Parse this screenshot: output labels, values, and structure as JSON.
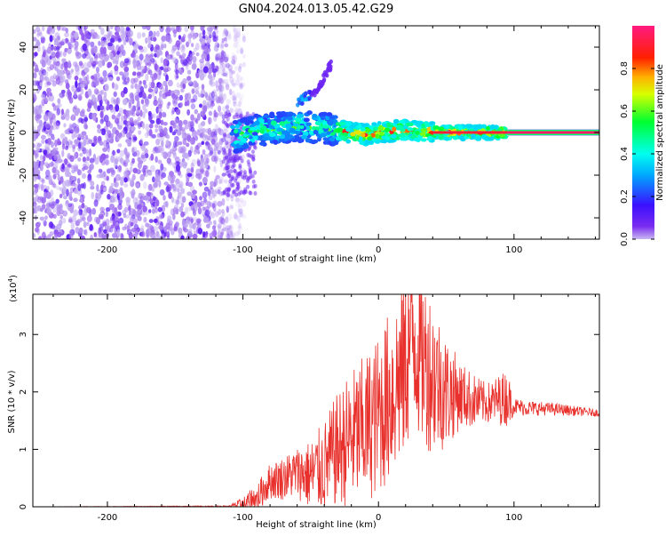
{
  "title": "GN04.2024.013.05.42.G29",
  "colors": {
    "line": "#e8312c",
    "axis": "#000000",
    "track": "#ff1a66"
  },
  "chart_data": [
    {
      "type": "heatmap",
      "xlabel": "Height of straight line (km)",
      "ylabel": "Frequency (Hz)",
      "xlim": [
        -255,
        163
      ],
      "ylim": [
        -50,
        50
      ],
      "x_ticks": [
        -200,
        -100,
        0,
        100
      ],
      "y_ticks": [
        -40,
        -20,
        0,
        20,
        40
      ],
      "colorbar": {
        "label": "Normalized spectral amplitude",
        "range": [
          0,
          1
        ],
        "ticks": [
          "0.0",
          "0.2",
          "0.4",
          "0.6",
          "0.8"
        ],
        "tick_values": [
          0,
          0.2,
          0.4,
          0.6,
          0.8
        ],
        "colormap": "rainbow (purple-blue-cyan-green-yellow-red-magenta)"
      },
      "features": {
        "noise_region_x": [
          -255,
          -105
        ],
        "noise_amplitude": 0.1,
        "signal_track_center_hz": [
          [
            -105,
            -2
          ],
          [
            -90,
            1
          ],
          [
            -75,
            2
          ],
          [
            -60,
            3
          ],
          [
            -40,
            2
          ],
          [
            -20,
            0
          ],
          [
            -10,
            -1
          ],
          [
            0,
            0
          ],
          [
            20,
            1
          ],
          [
            40,
            0
          ],
          [
            95,
            0
          ],
          [
            163,
            0
          ]
        ],
        "constant_tone_x": [
          95,
          163
        ],
        "branch_segment": [
          [
            -60,
            14
          ],
          [
            -45,
            20
          ],
          [
            -35,
            32
          ]
        ]
      }
    },
    {
      "type": "line",
      "xlabel": "Height of straight line (km)",
      "ylabel": "SNR (10 * v/v)",
      "y_multiplier": "(x10",
      "y_multiplier_exp": "4",
      "y_multiplier_close": ")",
      "xlim": [
        -255,
        163
      ],
      "ylim": [
        0,
        3.7
      ],
      "x_ticks": [
        -200,
        -100,
        0,
        100
      ],
      "y_ticks": [
        0,
        1,
        2,
        3
      ],
      "envelope": [
        [
          -255,
          0.0
        ],
        [
          -110,
          0.01
        ],
        [
          -100,
          0.04
        ],
        [
          -90,
          0.15
        ],
        [
          -80,
          0.45
        ],
        [
          -70,
          0.5
        ],
        [
          -60,
          0.6
        ],
        [
          -50,
          0.55
        ],
        [
          -40,
          0.7
        ],
        [
          -30,
          1.0
        ],
        [
          -20,
          1.2
        ],
        [
          -10,
          1.35
        ],
        [
          0,
          1.6
        ],
        [
          10,
          2.0
        ],
        [
          20,
          2.5
        ],
        [
          25,
          3.1
        ],
        [
          30,
          2.7
        ],
        [
          40,
          2.3
        ],
        [
          50,
          2.0
        ],
        [
          60,
          1.95
        ],
        [
          70,
          1.85
        ],
        [
          80,
          1.8
        ],
        [
          95,
          1.9
        ],
        [
          100,
          1.75
        ],
        [
          110,
          1.72
        ],
        [
          130,
          1.7
        ],
        [
          163,
          1.63
        ]
      ],
      "noise_scale": [
        [
          -255,
          0.0
        ],
        [
          -110,
          0.01
        ],
        [
          -90,
          0.25
        ],
        [
          -60,
          0.45
        ],
        [
          -40,
          0.8
        ],
        [
          -20,
          1.2
        ],
        [
          0,
          1.4
        ],
        [
          20,
          1.7
        ],
        [
          40,
          1.4
        ],
        [
          60,
          0.6
        ],
        [
          80,
          0.35
        ],
        [
          95,
          0.5
        ],
        [
          100,
          0.15
        ],
        [
          163,
          0.06
        ]
      ]
    }
  ]
}
